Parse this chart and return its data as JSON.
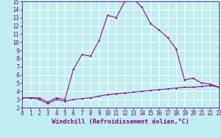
{
  "xlabel": "Windchill (Refroidissement éolien,°C)",
  "xlim": [
    0,
    23
  ],
  "ylim": [
    2,
    15
  ],
  "xticks": [
    0,
    1,
    2,
    3,
    4,
    5,
    6,
    7,
    8,
    9,
    10,
    11,
    12,
    13,
    14,
    15,
    16,
    17,
    18,
    19,
    20,
    21,
    22,
    23
  ],
  "yticks": [
    2,
    3,
    4,
    5,
    6,
    7,
    8,
    9,
    10,
    11,
    12,
    13,
    14,
    15
  ],
  "background_color": "#c0eef0",
  "grid_color": "#ffffff",
  "line_color": "#880088",
  "line1_x": [
    0,
    1,
    2,
    3,
    4,
    5,
    6,
    7,
    8,
    9,
    10,
    11,
    12,
    13,
    14,
    15,
    16,
    17,
    18,
    19,
    20,
    21,
    22,
    23
  ],
  "line1_y": [
    3.2,
    3.2,
    3.2,
    2.7,
    3.2,
    3.0,
    6.7,
    8.5,
    8.3,
    10.2,
    13.3,
    13.0,
    15.0,
    15.3,
    14.3,
    12.3,
    11.5,
    10.6,
    9.2,
    5.4,
    5.6,
    5.0,
    4.9,
    4.5
  ],
  "line2_x": [
    0,
    1,
    2,
    3,
    4,
    5,
    6,
    7,
    8,
    9,
    10,
    11,
    12,
    13,
    14,
    15,
    16,
    17,
    18,
    19,
    20,
    21,
    22,
    23
  ],
  "line2_y": [
    3.2,
    3.2,
    3.0,
    2.5,
    3.0,
    2.8,
    3.0,
    3.1,
    3.2,
    3.4,
    3.6,
    3.7,
    3.8,
    3.9,
    4.0,
    4.1,
    4.2,
    4.3,
    4.4,
    4.5,
    4.5,
    4.6,
    4.7,
    4.5
  ],
  "tick_fontsize": 5.5,
  "xlabel_fontsize": 6.5,
  "xlabel_fontweight": "bold"
}
